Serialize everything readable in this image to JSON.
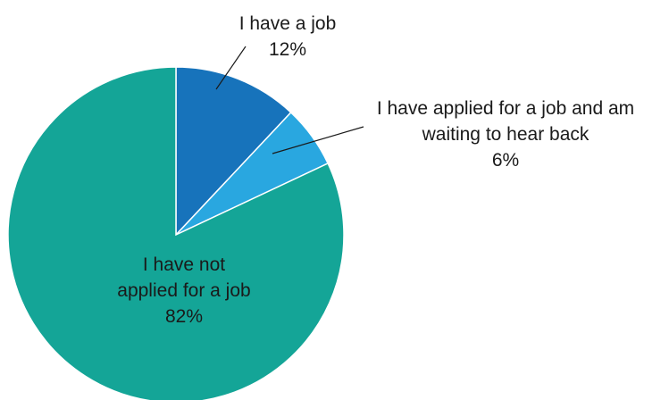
{
  "chart_data": {
    "type": "pie",
    "title": "",
    "slices": [
      {
        "label_lines": [
          "I have a job"
        ],
        "percent_label": "12%",
        "value": 12,
        "color": "#1773bb"
      },
      {
        "label_lines": [
          "I have applied for a job and am",
          "waiting to hear back"
        ],
        "percent_label": "6%",
        "value": 6,
        "color": "#29a7e0"
      },
      {
        "label_lines": [
          "I have not",
          "applied for a job"
        ],
        "percent_label": "82%",
        "value": 82,
        "color": "#14a597"
      }
    ],
    "start_angle_deg": 0,
    "direction": "clockwise",
    "slice_border_color": "#ffffff"
  }
}
